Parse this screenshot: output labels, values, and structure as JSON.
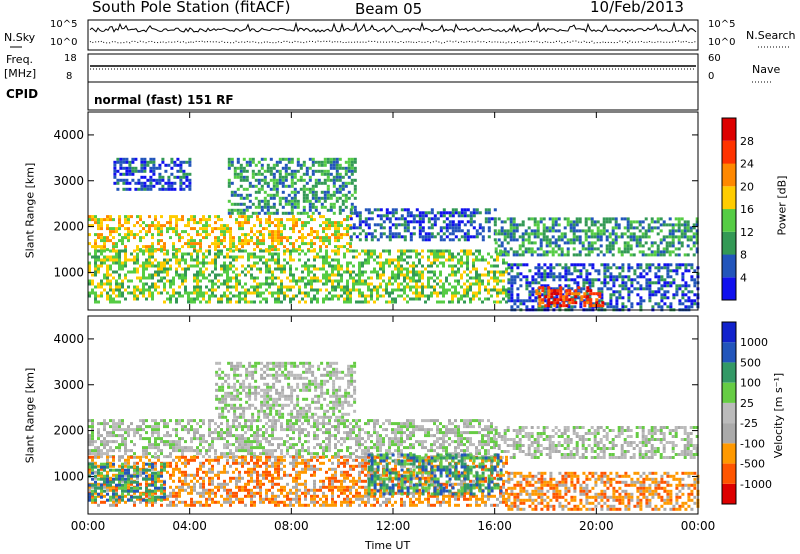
{
  "header": {
    "station": "South Pole Station (fitACF)",
    "beam": "Beam 05",
    "date": "10/Feb/2013"
  },
  "side_panels": {
    "nsky_label": "N.Sky",
    "nsky_ticks": [
      "10^5",
      "10^0"
    ],
    "nsearch_label": "N.Search",
    "nsearch_ticks": [
      "10^5",
      "10^0"
    ],
    "freq_label_1": "Freq.",
    "freq_label_2": "[MHz]",
    "freq_ticks": [
      "18",
      "8"
    ],
    "nave_label": "Nave",
    "nave_ticks": [
      "60",
      "0"
    ],
    "cpid_label": "CPID",
    "cpid_value": "normal (fast) 151 RF"
  },
  "chart_data": [
    {
      "type": "heatmap",
      "name": "power",
      "ylabel": "Slant Range [km]",
      "yticks": [
        "4000",
        "3000",
        "2000",
        "1000"
      ],
      "ylim": [
        180,
        4500
      ],
      "colorbar_label": "Power [dB]",
      "colorbar_ticks": [
        "28",
        "24",
        "20",
        "16",
        "12",
        "8",
        "4"
      ],
      "colors": [
        "#1010ee",
        "#2255bb",
        "#339955",
        "#55cc44",
        "#ffcc00",
        "#ff8800",
        "#ff3300",
        "#dd0000"
      ],
      "bands": [
        {
          "t0": 0.0,
          "t1": 10.3,
          "r0": 1500,
          "r1": 2250,
          "level": 4
        },
        {
          "t0": 10.3,
          "t1": 16.0,
          "r0": 1700,
          "r1": 2400,
          "level": 1
        },
        {
          "t0": 16.0,
          "t1": 24.0,
          "r0": 1400,
          "r1": 2200,
          "level": 2
        },
        {
          "t0": 0.0,
          "t1": 16.5,
          "r0": 350,
          "r1": 1500,
          "level": 3
        },
        {
          "t0": 16.5,
          "t1": 24.0,
          "r0": 200,
          "r1": 1200,
          "level": 1
        },
        {
          "t0": 17.6,
          "t1": 20.3,
          "r0": 250,
          "r1": 700,
          "level": 6
        },
        {
          "t0": 5.5,
          "t1": 10.5,
          "r0": 2300,
          "r1": 3500,
          "level": 2
        },
        {
          "t0": 1.0,
          "t1": 4.0,
          "r0": 2800,
          "r1": 3500,
          "level": 1
        }
      ]
    },
    {
      "type": "heatmap",
      "name": "velocity",
      "ylabel": "Slant Range [km]",
      "yticks": [
        "4000",
        "3000",
        "2000",
        "1000"
      ],
      "ylim": [
        180,
        4500
      ],
      "colorbar_label": "Velocity [m s⁻¹]",
      "colorbar_ticks": [
        "1000",
        "500",
        "100",
        "25",
        "-25",
        "-100",
        "-500",
        "-1000"
      ],
      "colors": [
        "#dd0000",
        "#ff5500",
        "#ff9900",
        "#aaaaaa",
        "#bbbbbb",
        "#66cc44",
        "#339966",
        "#2255bb",
        "#1122cc"
      ],
      "bands": [
        {
          "t0": 0.0,
          "t1": 16.0,
          "r0": 1450,
          "r1": 2250,
          "level": 4
        },
        {
          "t0": 16.0,
          "t1": 24.0,
          "r0": 1400,
          "r1": 2100,
          "level": 4
        },
        {
          "t0": 0.0,
          "t1": 16.5,
          "r0": 350,
          "r1": 1450,
          "level": 2
        },
        {
          "t0": 11.0,
          "t1": 16.3,
          "r0": 600,
          "r1": 1500,
          "level": 6
        },
        {
          "t0": 16.5,
          "t1": 24.0,
          "r0": 250,
          "r1": 1100,
          "level": 2
        },
        {
          "t0": 5.0,
          "t1": 10.5,
          "r0": 2300,
          "r1": 3500,
          "level": 4
        },
        {
          "t0": 0.0,
          "t1": 3.0,
          "r0": 500,
          "r1": 1300,
          "level": 6
        }
      ]
    }
  ],
  "x_axis": {
    "label": "Time UT",
    "ticks": [
      "00:00",
      "04:00",
      "08:00",
      "12:00",
      "16:00",
      "20:00",
      "00:00"
    ],
    "range_hours": [
      0,
      24
    ]
  }
}
